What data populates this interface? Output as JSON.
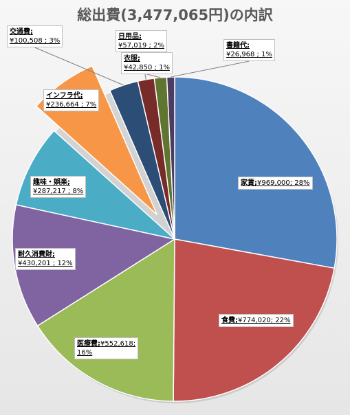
{
  "chart_data": {
    "type": "pie",
    "title": "総出費(3,477,065円)の内訳",
    "total": 3477065,
    "start_angle_deg": 0,
    "direction": "clockwise",
    "exploded": [
      "インフラ代"
    ],
    "slices": [
      {
        "name": "家賃",
        "value": 969000,
        "percent_label": "28%",
        "value_label": "¥969,000",
        "color": "#4f81bd"
      },
      {
        "name": "食費",
        "value": 774020,
        "percent_label": "22%",
        "value_label": "¥774,020",
        "color": "#c0504d"
      },
      {
        "name": "医療費",
        "value": 552618,
        "percent_label": "16%",
        "value_label": "¥552,618",
        "color": "#9bbb59"
      },
      {
        "name": "耐久消費財",
        "value": 430201,
        "percent_label": "12%",
        "value_label": "¥430,201",
        "color": "#8064a2"
      },
      {
        "name": "趣味・娯楽",
        "value": 287217,
        "percent_label": "8%",
        "value_label": "¥287,217",
        "color": "#4bacc6"
      },
      {
        "name": "インフラ代",
        "value": 236664,
        "percent_label": "7%",
        "value_label": "¥236,664",
        "color": "#f79646"
      },
      {
        "name": "交通費",
        "value": 100508,
        "percent_label": "3%",
        "value_label": "¥100,508",
        "color": "#2c4d75"
      },
      {
        "name": "日用品",
        "value": 57019,
        "percent_label": "2%",
        "value_label": "¥57,019",
        "color": "#772c2a"
      },
      {
        "name": "衣服",
        "value": 42850,
        "percent_label": "1%",
        "value_label": "¥42,850",
        "color": "#5f7530"
      },
      {
        "name": "書籍代",
        "value": 26968,
        "percent_label": "1%",
        "value_label": "¥26,968",
        "color": "#4d3b62"
      }
    ]
  }
}
